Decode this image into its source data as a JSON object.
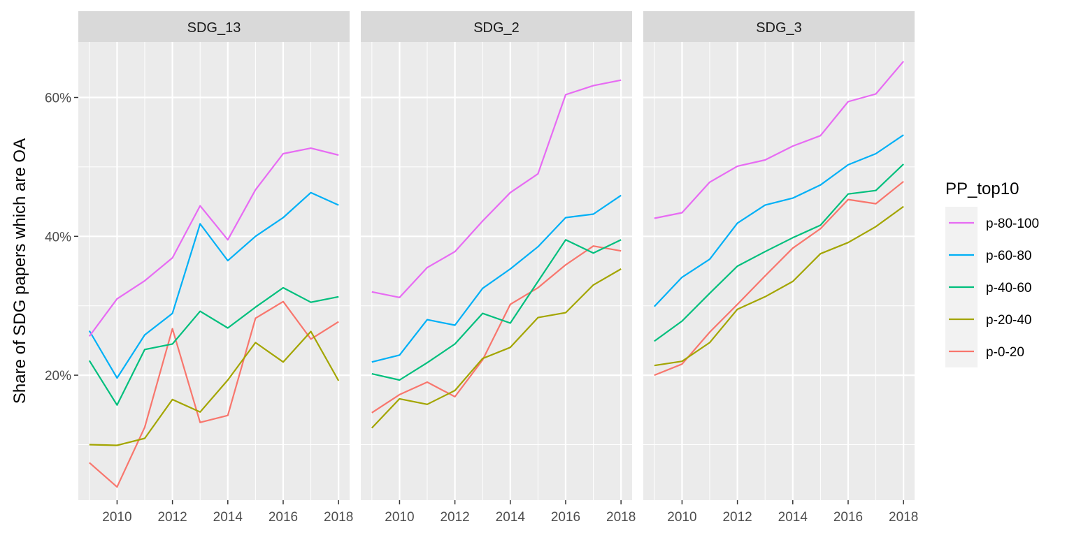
{
  "chart_data": {
    "type": "line",
    "ylabel": "Share of SDG papers which are OA",
    "xlabel": "",
    "x": [
      2009,
      2010,
      2011,
      2012,
      2013,
      2014,
      2015,
      2016,
      2017,
      2018
    ],
    "x_ticks": [
      2010,
      2012,
      2014,
      2016,
      2018
    ],
    "y_ticks": [
      0.2,
      0.4,
      0.6
    ],
    "y_tick_labels": [
      "20%",
      "40%",
      "60%"
    ],
    "ylim": [
      0.02,
      0.68
    ],
    "xlim": [
      2008.6,
      2018.4
    ],
    "grid": true,
    "legend": {
      "title": "PP_top10",
      "position": "right",
      "entries": [
        {
          "name": "p-80-100",
          "color": "#E76BF3"
        },
        {
          "name": "p-60-80",
          "color": "#00B0F6"
        },
        {
          "name": "p-40-60",
          "color": "#00BF7D"
        },
        {
          "name": "p-20-40",
          "color": "#A3A500"
        },
        {
          "name": "p-0-20",
          "color": "#F8766D"
        }
      ]
    },
    "facets": [
      {
        "title": "SDG_13",
        "series": [
          {
            "name": "p-80-100",
            "values": [
              0.256,
              0.31,
              0.336,
              0.369,
              0.444,
              0.395,
              0.467,
              0.519,
              0.527,
              0.517
            ]
          },
          {
            "name": "p-60-80",
            "values": [
              0.264,
              0.196,
              0.258,
              0.289,
              0.418,
              0.365,
              0.4,
              0.427,
              0.463,
              0.445
            ]
          },
          {
            "name": "p-40-60",
            "values": [
              0.221,
              0.157,
              0.237,
              0.245,
              0.292,
              0.268,
              0.298,
              0.326,
              0.305,
              0.313
            ]
          },
          {
            "name": "p-20-40",
            "values": [
              0.1,
              0.099,
              0.109,
              0.165,
              0.147,
              0.193,
              0.247,
              0.219,
              0.263,
              0.192
            ]
          },
          {
            "name": "p-0-20",
            "values": [
              0.074,
              0.039,
              0.125,
              0.267,
              0.132,
              0.142,
              0.282,
              0.306,
              0.252,
              0.277
            ]
          }
        ]
      },
      {
        "title": "SDG_2",
        "series": [
          {
            "name": "p-80-100",
            "values": [
              0.32,
              0.312,
              0.355,
              0.378,
              0.422,
              0.463,
              0.49,
              0.604,
              0.617,
              0.625
            ]
          },
          {
            "name": "p-60-80",
            "values": [
              0.219,
              0.229,
              0.28,
              0.272,
              0.325,
              0.353,
              0.385,
              0.427,
              0.432,
              0.459
            ]
          },
          {
            "name": "p-40-60",
            "values": [
              0.202,
              0.193,
              0.218,
              0.245,
              0.289,
              0.275,
              0.335,
              0.395,
              0.376,
              0.395
            ]
          },
          {
            "name": "p-20-40",
            "values": [
              0.124,
              0.166,
              0.158,
              0.178,
              0.224,
              0.24,
              0.283,
              0.29,
              0.33,
              0.353
            ]
          },
          {
            "name": "p-0-20",
            "values": [
              0.146,
              0.172,
              0.19,
              0.169,
              0.222,
              0.302,
              0.326,
              0.359,
              0.386,
              0.379
            ]
          }
        ]
      },
      {
        "title": "SDG_3",
        "series": [
          {
            "name": "p-80-100",
            "values": [
              0.426,
              0.434,
              0.478,
              0.501,
              0.51,
              0.53,
              0.545,
              0.594,
              0.605,
              0.652
            ]
          },
          {
            "name": "p-60-80",
            "values": [
              0.299,
              0.341,
              0.367,
              0.419,
              0.445,
              0.455,
              0.474,
              0.503,
              0.519,
              0.546
            ]
          },
          {
            "name": "p-40-60",
            "values": [
              0.249,
              0.278,
              0.318,
              0.357,
              0.378,
              0.398,
              0.416,
              0.461,
              0.466,
              0.504
            ]
          },
          {
            "name": "p-20-40",
            "values": [
              0.214,
              0.22,
              0.247,
              0.295,
              0.313,
              0.335,
              0.375,
              0.391,
              0.414,
              0.443
            ]
          },
          {
            "name": "p-0-20",
            "values": [
              0.2,
              0.216,
              0.262,
              0.302,
              0.343,
              0.383,
              0.411,
              0.453,
              0.447,
              0.479
            ]
          }
        ]
      }
    ]
  }
}
